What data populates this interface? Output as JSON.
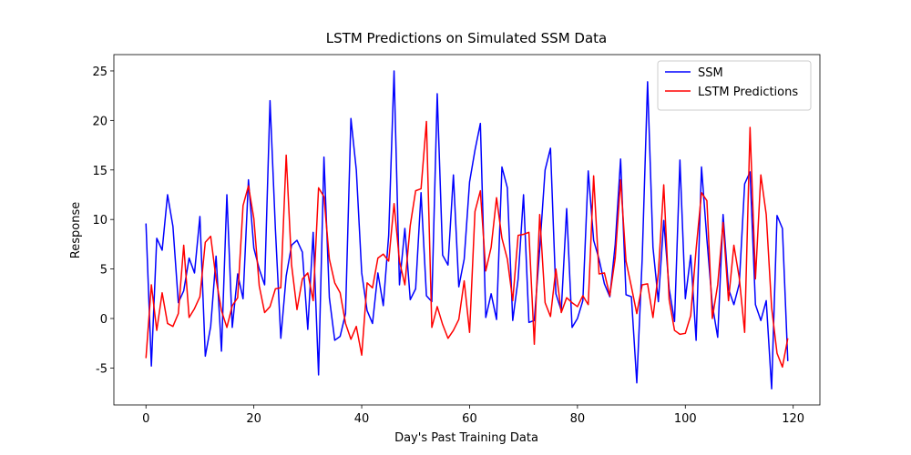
{
  "chart_data": {
    "type": "line",
    "title": "LSTM Predictions on Simulated SSM Data",
    "xlabel": "Day's Past Training Data",
    "ylabel": "Response",
    "x": [
      0,
      1,
      2,
      3,
      4,
      5,
      6,
      7,
      8,
      9,
      10,
      11,
      12,
      13,
      14,
      15,
      16,
      17,
      18,
      19,
      20,
      21,
      22,
      23,
      24,
      25,
      26,
      27,
      28,
      29,
      30,
      31,
      32,
      33,
      34,
      35,
      36,
      37,
      38,
      39,
      40,
      41,
      42,
      43,
      44,
      45,
      46,
      47,
      48,
      49,
      50,
      51,
      52,
      53,
      54,
      55,
      56,
      57,
      58,
      59,
      60,
      61,
      62,
      63,
      64,
      65,
      66,
      67,
      68,
      69,
      70,
      71,
      72,
      73,
      74,
      75,
      76,
      77,
      78,
      79,
      80,
      81,
      82,
      83,
      84,
      85,
      86,
      87,
      88,
      89,
      90,
      91,
      92,
      93,
      94,
      95,
      96,
      97,
      98,
      99,
      100,
      101,
      102,
      103,
      104,
      105,
      106,
      107,
      108,
      109,
      110,
      111,
      112,
      113,
      114,
      115,
      116,
      117,
      118,
      119
    ],
    "series": [
      {
        "name": "SSM",
        "color": "#0000ff",
        "values": [
          9.6,
          -4.8,
          8.1,
          6.9,
          12.5,
          9.3,
          1.6,
          2.8,
          6.1,
          4.6,
          10.3,
          -3.8,
          -0.8,
          6.3,
          -3.3,
          12.5,
          -0.9,
          4.5,
          2.0,
          14.0,
          7.1,
          5.0,
          3.4,
          22.0,
          9.0,
          -2.0,
          4.3,
          7.4,
          7.9,
          6.7,
          -1.1,
          8.7,
          -5.7,
          16.3,
          2.1,
          -2.2,
          -1.8,
          0.5,
          20.2,
          15.0,
          4.6,
          0.8,
          -0.5,
          4.6,
          1.3,
          8.4,
          25.0,
          3.4,
          9.1,
          1.9,
          3.0,
          12.7,
          2.3,
          1.7,
          22.7,
          6.4,
          5.4,
          14.5,
          3.2,
          6.0,
          13.8,
          17.0,
          19.7,
          0.1,
          2.5,
          -0.1,
          15.3,
          13.2,
          -0.2,
          4.0,
          12.5,
          -0.4,
          -0.2,
          7.0,
          15.0,
          17.2,
          2.5,
          0.8,
          11.1,
          -0.9,
          0.0,
          1.8,
          14.9,
          7.9,
          6.0,
          3.5,
          2.2,
          7.5,
          16.1,
          2.4,
          2.2,
          -6.5,
          6.0,
          23.9,
          7.2,
          1.7,
          9.9,
          3.0,
          -0.3,
          16.0,
          2.0,
          6.4,
          -2.2,
          15.3,
          8.0,
          1.4,
          -1.9,
          10.5,
          3.0,
          1.4,
          3.5,
          13.6,
          14.8,
          1.4,
          -0.2,
          1.8,
          -7.1,
          10.4,
          9.1,
          -4.3
        ]
      },
      {
        "name": "LSTM Predictions",
        "color": "#ff0000",
        "values": [
          -4.0,
          3.4,
          -1.2,
          2.6,
          -0.5,
          -0.8,
          0.5,
          7.4,
          0.1,
          1.0,
          2.2,
          7.7,
          8.3,
          4.0,
          0.8,
          -0.9,
          1.3,
          2.1,
          11.4,
          13.4,
          10.1,
          3.3,
          0.6,
          1.2,
          3.0,
          3.1,
          16.5,
          5.4,
          0.9,
          4.0,
          4.6,
          1.8,
          13.2,
          12.3,
          6.0,
          3.6,
          2.6,
          -0.5,
          -2.1,
          -0.8,
          -3.7,
          3.6,
          3.1,
          6.1,
          6.5,
          5.8,
          11.6,
          5.8,
          3.4,
          9.4,
          12.9,
          13.1,
          19.9,
          -0.9,
          1.2,
          -0.6,
          -2.0,
          -1.2,
          -0.1,
          3.8,
          -1.4,
          10.8,
          12.9,
          4.8,
          7.2,
          12.2,
          8.1,
          6.0,
          1.8,
          8.4,
          8.5,
          8.7,
          -2.6,
          10.5,
          1.6,
          0.2,
          5.0,
          0.6,
          2.1,
          1.6,
          1.2,
          2.3,
          1.4,
          14.4,
          4.5,
          4.6,
          2.3,
          6.1,
          14.0,
          5.8,
          3.2,
          0.5,
          3.4,
          3.5,
          0.1,
          4.6,
          13.5,
          1.9,
          -1.2,
          -1.6,
          -1.5,
          0.3,
          7.0,
          12.7,
          11.9,
          0.0,
          3.4,
          9.7,
          1.8,
          7.4,
          4.1,
          -1.4,
          19.3,
          4.0,
          14.5,
          10.5,
          1.1,
          -3.5,
          -4.9,
          -2.0
        ]
      }
    ],
    "xlim": [
      -5.95,
      124.95
    ],
    "xticks": [
      0,
      20,
      40,
      60,
      80,
      100,
      120
    ],
    "ylim": [
      -8.73,
      26.65
    ],
    "yticks": [
      -5,
      0,
      5,
      10,
      15,
      20,
      25
    ],
    "grid": false,
    "legend": "upper right"
  }
}
